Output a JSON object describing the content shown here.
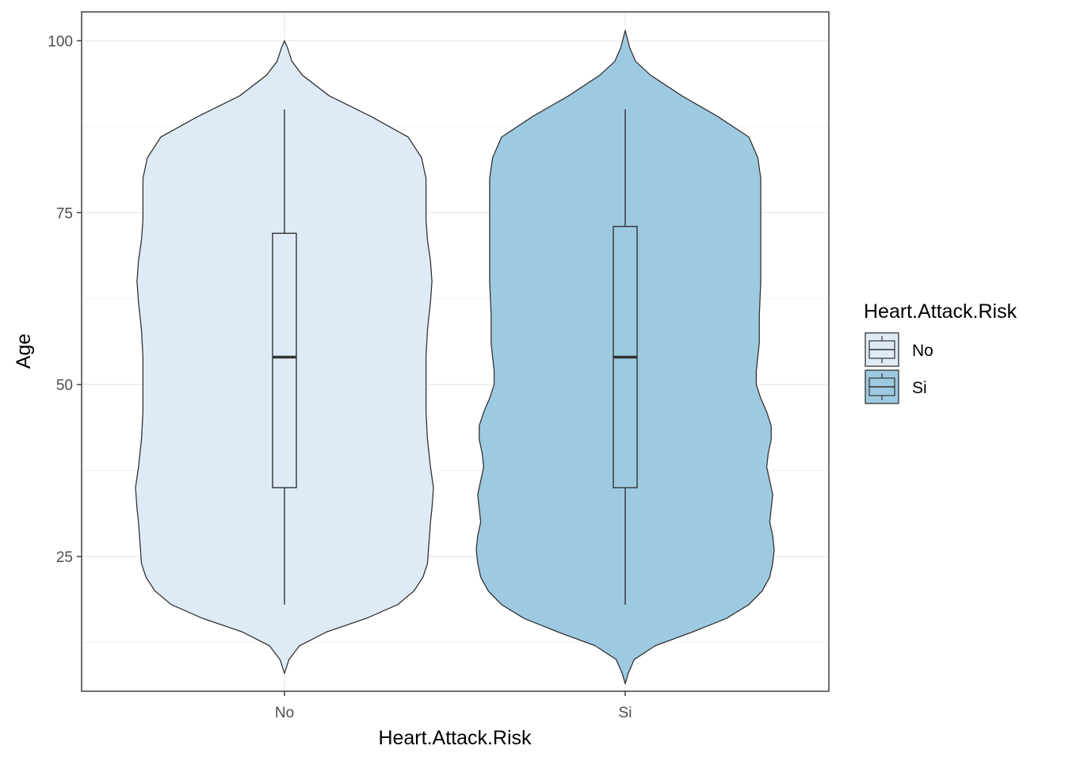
{
  "chart_data": {
    "type": "violin",
    "xlabel": "Heart.Attack.Risk",
    "ylabel": "Age",
    "ylim": [
      5.4,
      104.2
    ],
    "yticks": [
      25,
      50,
      75,
      100
    ],
    "grid": true,
    "categories": [
      "No",
      "Si"
    ],
    "legend": {
      "title": "Heart.Attack.Risk",
      "position": "right",
      "entries": [
        "No",
        "Si"
      ]
    },
    "series": [
      {
        "category": "No",
        "color": "#deebf7",
        "violin_range": [
          8,
          100
        ],
        "boxplot": {
          "min": 18,
          "q1": 35,
          "median": 54,
          "q3": 72,
          "max": 90
        },
        "density_profile": [
          [
            8,
            0.0
          ],
          [
            10,
            0.03
          ],
          [
            12,
            0.1
          ],
          [
            14,
            0.28
          ],
          [
            16,
            0.55
          ],
          [
            18,
            0.76
          ],
          [
            20,
            0.87
          ],
          [
            22,
            0.93
          ],
          [
            24,
            0.96
          ],
          [
            27,
            0.97
          ],
          [
            30,
            0.98
          ],
          [
            32,
            0.99
          ],
          [
            35,
            1.0
          ],
          [
            38,
            0.98
          ],
          [
            42,
            0.96
          ],
          [
            46,
            0.95
          ],
          [
            50,
            0.95
          ],
          [
            54,
            0.95
          ],
          [
            58,
            0.96
          ],
          [
            62,
            0.98
          ],
          [
            65,
            0.99
          ],
          [
            68,
            0.98
          ],
          [
            71,
            0.96
          ],
          [
            74,
            0.95
          ],
          [
            77,
            0.95
          ],
          [
            80,
            0.95
          ],
          [
            83,
            0.92
          ],
          [
            86,
            0.83
          ],
          [
            89,
            0.58
          ],
          [
            92,
            0.3
          ],
          [
            95,
            0.12
          ],
          [
            97,
            0.05
          ],
          [
            99,
            0.02
          ],
          [
            100,
            0.0
          ]
        ]
      },
      {
        "category": "Si",
        "color": "#9ecae1",
        "violin_range": [
          6.5,
          101.5
        ],
        "boxplot": {
          "min": 18,
          "q1": 35,
          "median": 54,
          "q3": 73,
          "max": 90
        },
        "density_profile": [
          [
            6.5,
            0.0
          ],
          [
            8,
            0.02
          ],
          [
            10,
            0.06
          ],
          [
            12,
            0.2
          ],
          [
            14,
            0.45
          ],
          [
            16,
            0.68
          ],
          [
            18,
            0.83
          ],
          [
            20,
            0.92
          ],
          [
            22,
            0.97
          ],
          [
            24,
            0.99
          ],
          [
            26,
            1.0
          ],
          [
            28,
            0.99
          ],
          [
            30,
            0.97
          ],
          [
            32,
            0.98
          ],
          [
            34,
            0.99
          ],
          [
            36,
            0.97
          ],
          [
            38,
            0.95
          ],
          [
            40,
            0.96
          ],
          [
            42,
            0.98
          ],
          [
            44,
            0.98
          ],
          [
            46,
            0.95
          ],
          [
            48,
            0.91
          ],
          [
            50,
            0.88
          ],
          [
            52,
            0.88
          ],
          [
            54,
            0.89
          ],
          [
            56,
            0.9
          ],
          [
            58,
            0.9
          ],
          [
            60,
            0.9
          ],
          [
            65,
            0.91
          ],
          [
            70,
            0.91
          ],
          [
            75,
            0.91
          ],
          [
            80,
            0.91
          ],
          [
            83,
            0.89
          ],
          [
            86,
            0.83
          ],
          [
            89,
            0.62
          ],
          [
            92,
            0.38
          ],
          [
            95,
            0.17
          ],
          [
            97,
            0.07
          ],
          [
            99,
            0.03
          ],
          [
            101.5,
            0.0
          ]
        ]
      }
    ]
  }
}
